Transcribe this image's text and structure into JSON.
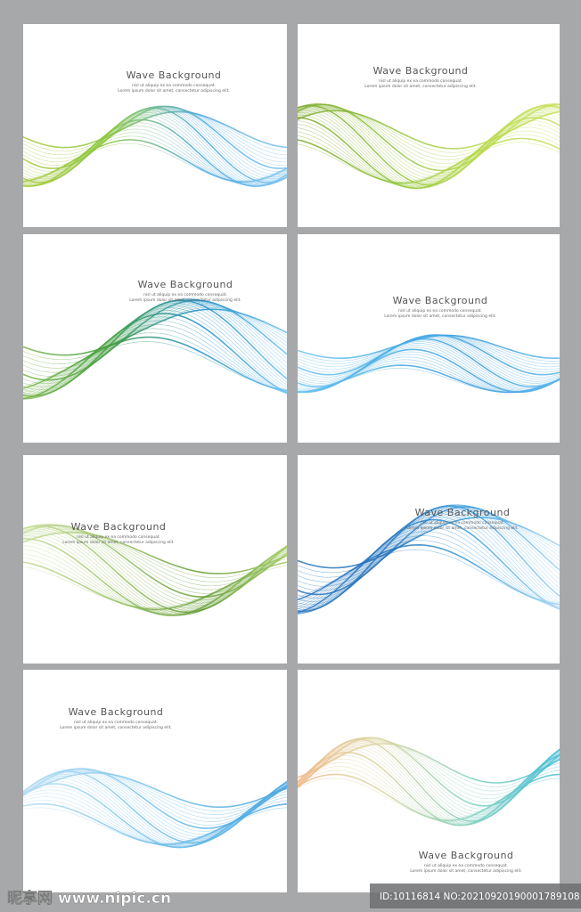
{
  "panels": [
    {
      "title": "Wave Background",
      "line1": "nisl ut aliquip ex ea commodo consequat.",
      "line2": "Lorem ipsum dolor sit amet, consectetur adipiscing elit."
    },
    {
      "title": "Wave Background",
      "line1": "nisl ut aliquip ex ea commodo consequat.",
      "line2": "Lorem ipsum dolor sit amet, consectetur adipiscing elit."
    },
    {
      "title": "Wave Background",
      "line1": "nisl ut aliquip ex ea commodo consequat.",
      "line2": "Lorem ipsum dolor sit amet, consectetur adipiscing elit."
    },
    {
      "title": "Wave Background",
      "line1": "nisl ut aliquip ex ea commodo consequat.",
      "line2": "Lorem ipsum dolor sit amet, consectetur adipiscing elit."
    },
    {
      "title": "Wave Background",
      "line1": "nisl ut aliquip ex ea commodo consequat.",
      "line2": "Lorem ipsum dolor sit amet, consectetur adipiscing elit."
    },
    {
      "title": "Wave Background",
      "line1": "nisl ut aliquip ex ea commodo consequat.",
      "line2": "Lorem ipsum dolor sit amet, consectetur adipiscing elit."
    },
    {
      "title": "Wave Background",
      "line1": "nisl ut aliquip ex ea commodo consequat.",
      "line2": "Lorem ipsum dolor sit amet, consectetur adipiscing elit."
    },
    {
      "title": "Wave Background",
      "line1": "nisl ut aliquip ex ea commodo consequat.",
      "line2": "Lorem ipsum dolor sit amet, consectetur adipiscing elit."
    }
  ],
  "watermark": {
    "site": "昵享网 www.nipic.cn",
    "id": "ID:10116814 NO:20210920190001789108"
  }
}
